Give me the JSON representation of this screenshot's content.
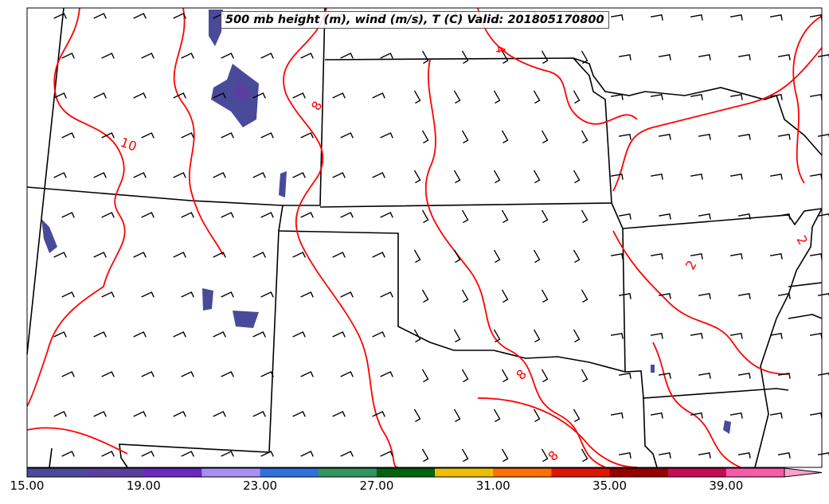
{
  "title": "500 mb height (m), wind (m/s), T (C) Valid: 201805170800",
  "contour_labels": [
    "10",
    "8",
    "4",
    "2",
    "2",
    "8",
    "8"
  ],
  "colorbar": {
    "min": 15,
    "max": 41,
    "step": 2,
    "tick_labels": [
      "15.00",
      "19.00",
      "23.00",
      "27.00",
      "31.00",
      "35.00",
      "39.00"
    ],
    "tick_values": [
      15,
      19,
      23,
      27,
      31,
      35,
      39
    ],
    "colors": [
      "#4a4a9a",
      "#5a3fa0",
      "#6a2abf",
      "#a98ff5",
      "#3070e0",
      "#30955f",
      "#036410",
      "#f0be00",
      "#ff6f00",
      "#e01500",
      "#990000",
      "#c80a55",
      "#f75aa8"
    ],
    "extend_color": "#ffa0c8"
  },
  "contour_color": "#ff0000"
}
